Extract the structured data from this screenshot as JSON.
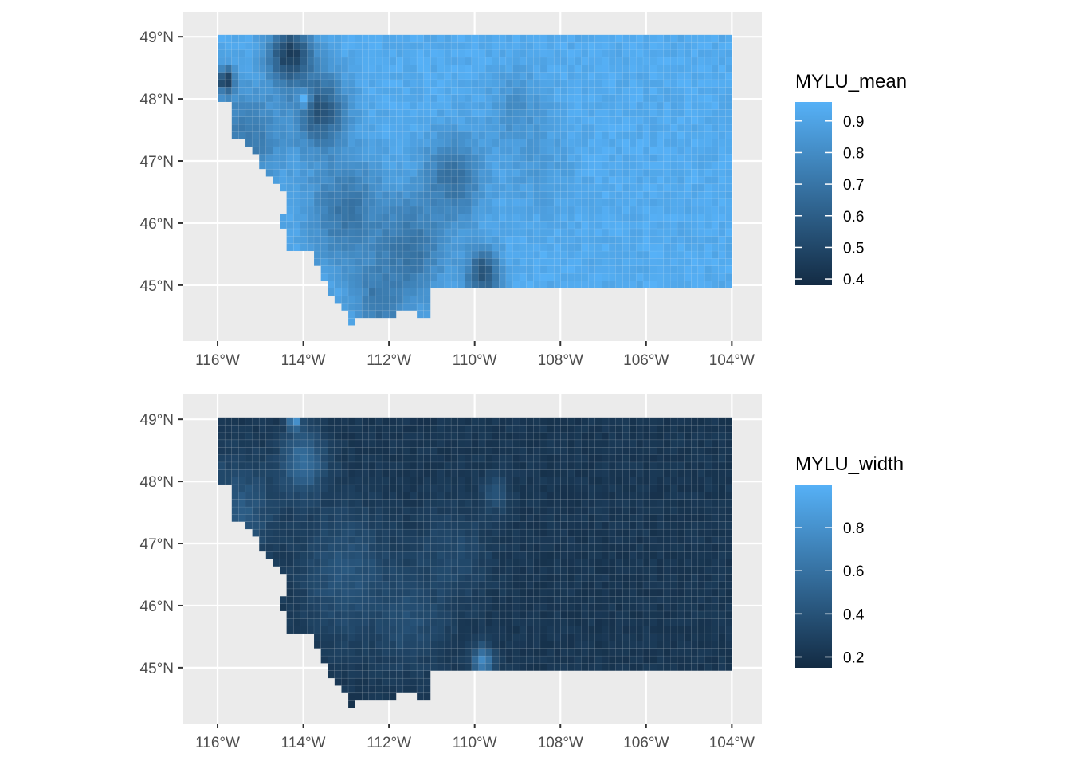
{
  "chart_data": [
    {
      "type": "heatmap",
      "title": "",
      "xlabel": "",
      "ylabel": "",
      "grid": true,
      "legend_placement": "right",
      "x_ticks": [
        {
          "value": -116,
          "label": "116°W"
        },
        {
          "value": -114,
          "label": "114°W"
        },
        {
          "value": -112,
          "label": "112°W"
        },
        {
          "value": -110,
          "label": "110°W"
        },
        {
          "value": -108,
          "label": "108°W"
        },
        {
          "value": -106,
          "label": "106°W"
        },
        {
          "value": -104,
          "label": "104°W"
        }
      ],
      "y_ticks": [
        {
          "value": 49,
          "label": "49°N"
        },
        {
          "value": 48,
          "label": "48°N"
        },
        {
          "value": 47,
          "label": "47°N"
        },
        {
          "value": 46,
          "label": "46°N"
        },
        {
          "value": 45,
          "label": "45°N"
        }
      ],
      "xlim": [
        -116.8,
        -103.3
      ],
      "ylim": [
        44.1,
        49.4
      ],
      "legend": {
        "title": "MYLU_mean",
        "range": [
          0.38,
          0.96
        ],
        "ticks": [
          {
            "value": 0.9,
            "label": "0.9"
          },
          {
            "value": 0.8,
            "label": "0.8"
          },
          {
            "value": 0.7,
            "label": "0.7"
          },
          {
            "value": 0.6,
            "label": "0.6"
          },
          {
            "value": 0.5,
            "label": "0.5"
          },
          {
            "value": 0.4,
            "label": "0.4"
          }
        ],
        "color_low": "#132B43",
        "color_high": "#56B1F7"
      },
      "field": {
        "variable": "MYLU_mean",
        "background_value": 0.93,
        "features": [
          {
            "lon": -113.6,
            "lat": 47.8,
            "value": 0.55,
            "spread": 0.6
          },
          {
            "lon": -114.3,
            "lat": 48.7,
            "value": 0.45,
            "spread": 0.5
          },
          {
            "lon": -115.3,
            "lat": 47.4,
            "value": 0.72,
            "spread": 0.8
          },
          {
            "lon": -113.0,
            "lat": 46.2,
            "value": 0.7,
            "spread": 0.9
          },
          {
            "lon": -111.5,
            "lat": 45.6,
            "value": 0.68,
            "spread": 0.8
          },
          {
            "lon": -110.5,
            "lat": 46.7,
            "value": 0.68,
            "spread": 0.7
          },
          {
            "lon": -109.8,
            "lat": 45.2,
            "value": 0.55,
            "spread": 0.4
          },
          {
            "lon": -112.2,
            "lat": 44.8,
            "value": 0.7,
            "spread": 0.6
          },
          {
            "lon": -109.0,
            "lat": 47.8,
            "value": 0.8,
            "spread": 0.6
          },
          {
            "lon": -108.5,
            "lat": 46.9,
            "value": 0.85,
            "spread": 0.7
          },
          {
            "lon": -114.0,
            "lat": 48.0,
            "value": 0.95,
            "spread": 0.15
          },
          {
            "lon": -115.8,
            "lat": 48.3,
            "value": 0.4,
            "spread": 0.2
          }
        ]
      }
    },
    {
      "type": "heatmap",
      "title": "",
      "xlabel": "",
      "ylabel": "",
      "grid": true,
      "legend_placement": "right",
      "x_ticks": [
        {
          "value": -116,
          "label": "116°W"
        },
        {
          "value": -114,
          "label": "114°W"
        },
        {
          "value": -112,
          "label": "112°W"
        },
        {
          "value": -110,
          "label": "110°W"
        },
        {
          "value": -108,
          "label": "108°W"
        },
        {
          "value": -106,
          "label": "106°W"
        },
        {
          "value": -104,
          "label": "104°W"
        }
      ],
      "y_ticks": [
        {
          "value": 49,
          "label": "49°N"
        },
        {
          "value": 48,
          "label": "48°N"
        },
        {
          "value": 47,
          "label": "47°N"
        },
        {
          "value": 46,
          "label": "46°N"
        },
        {
          "value": 45,
          "label": "45°N"
        }
      ],
      "xlim": [
        -116.8,
        -103.3
      ],
      "ylim": [
        44.1,
        49.4
      ],
      "legend": {
        "title": "MYLU_width",
        "range": [
          0.15,
          1.0
        ],
        "ticks": [
          {
            "value": 0.8,
            "label": "0.8"
          },
          {
            "value": 0.6,
            "label": "0.6"
          },
          {
            "value": 0.4,
            "label": "0.4"
          },
          {
            "value": 0.2,
            "label": "0.2"
          }
        ],
        "color_low": "#132B43",
        "color_high": "#56B1F7"
      },
      "field": {
        "variable": "MYLU_width",
        "background_value": 0.22,
        "features": [
          {
            "lon": -114.0,
            "lat": 48.3,
            "value": 0.6,
            "spread": 0.5
          },
          {
            "lon": -115.5,
            "lat": 47.5,
            "value": 0.45,
            "spread": 0.8
          },
          {
            "lon": -113.0,
            "lat": 46.5,
            "value": 0.42,
            "spread": 1.0
          },
          {
            "lon": -111.5,
            "lat": 45.8,
            "value": 0.38,
            "spread": 0.8
          },
          {
            "lon": -110.5,
            "lat": 46.8,
            "value": 0.35,
            "spread": 0.8
          },
          {
            "lon": -109.8,
            "lat": 45.1,
            "value": 0.75,
            "spread": 0.25
          },
          {
            "lon": -109.5,
            "lat": 47.8,
            "value": 0.4,
            "spread": 0.3
          },
          {
            "lon": -114.2,
            "lat": 49.0,
            "value": 0.85,
            "spread": 0.15
          },
          {
            "lon": -116.1,
            "lat": 48.2,
            "value": 0.85,
            "spread": 0.12
          }
        ]
      }
    }
  ]
}
